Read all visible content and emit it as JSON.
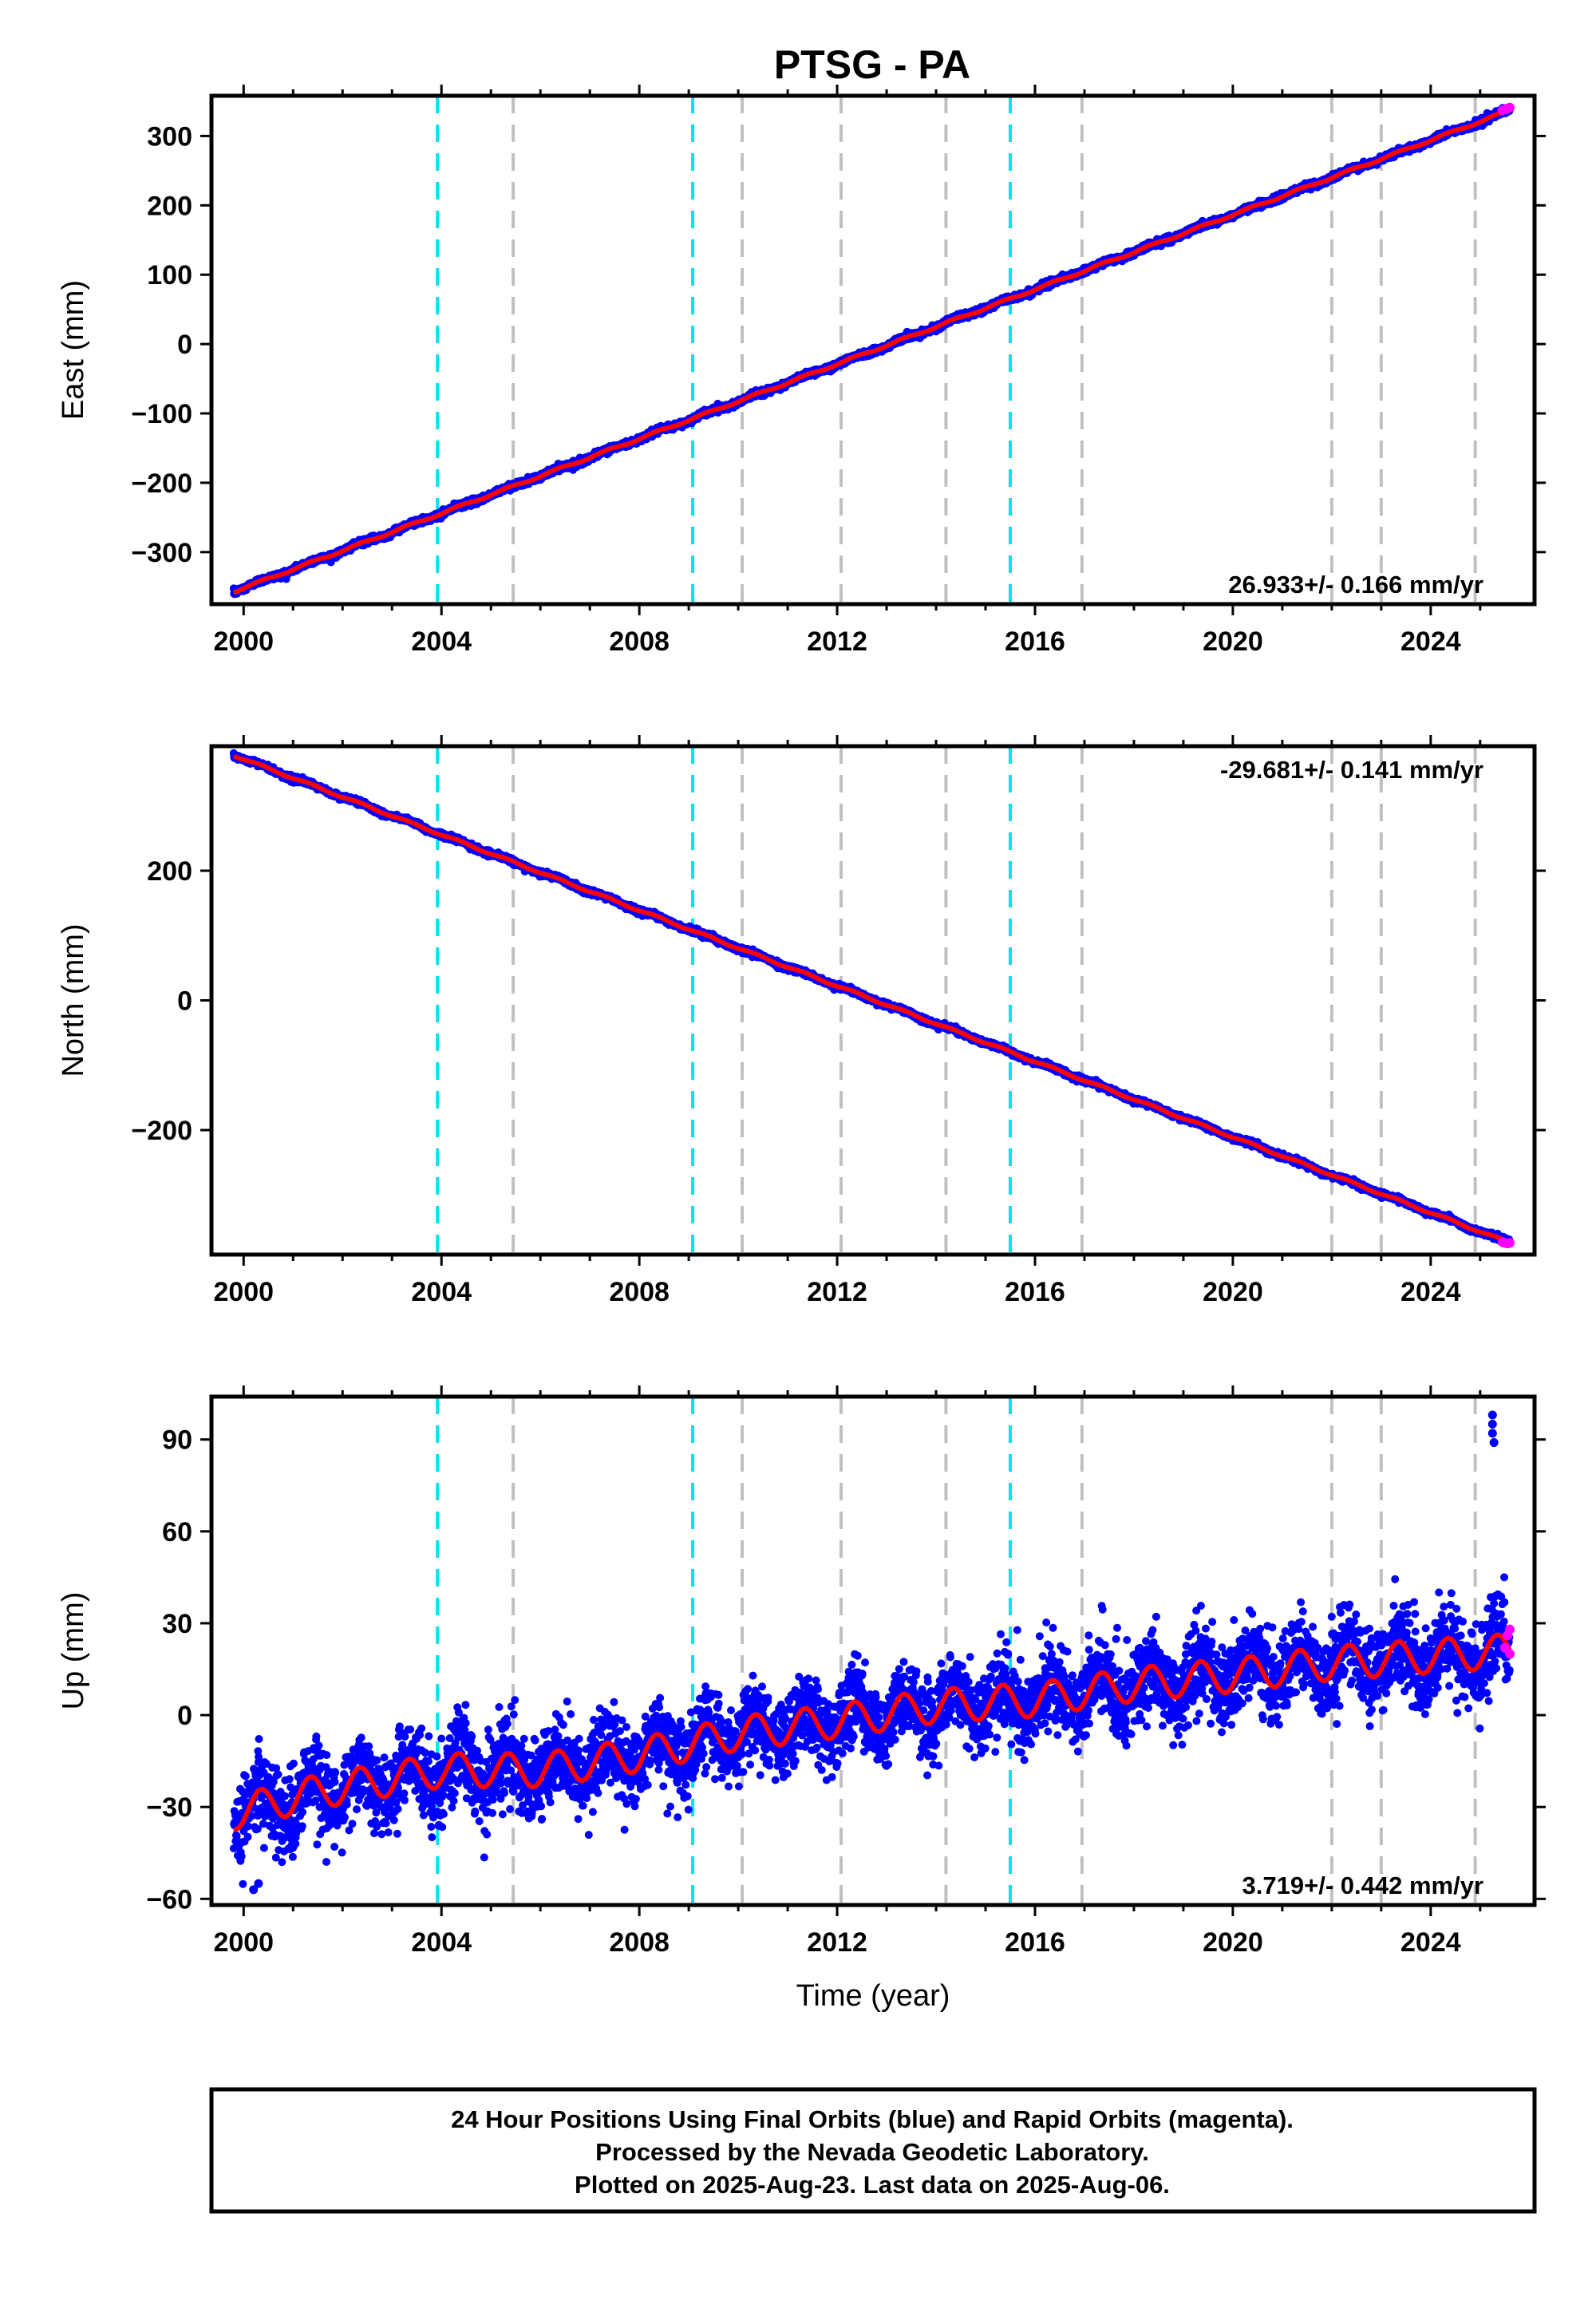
{
  "title": "PTSG - PA",
  "colors": {
    "final": "#0000ff",
    "rapid": "#ff00ff",
    "model": "#ff0000",
    "antenna": "#00e5ee",
    "other": "#c0c0c0"
  },
  "chart_data": [
    {
      "type": "scatter",
      "name": "east",
      "ylabel": "East (mm)",
      "xlabel": "",
      "xlim": [
        1999.35,
        2026.1
      ],
      "ylim": [
        -375,
        358
      ],
      "xticks": [
        2000,
        2004,
        2008,
        2012,
        2016,
        2020,
        2024
      ],
      "xtick_labels": [
        "2000",
        "2004",
        "2008",
        "2012",
        "2016",
        "2020",
        "2024"
      ],
      "yticks": [
        -300,
        -200,
        -100,
        0,
        100,
        200,
        300
      ],
      "ytick_labels": [
        "−300",
        "−200",
        "−100",
        "0",
        "100",
        "200",
        "300"
      ],
      "rate_label": "26.933+/- 0.166 mm/yr",
      "rate_position": "bottom-right",
      "data_start": 1999.8,
      "data_end": 2025.6,
      "start_value": -357,
      "end_value": 337,
      "seasonal_amplitude": 1.5,
      "noise": 2.2,
      "rapid_tail": [
        [
          2025.45,
          337
        ],
        [
          2025.5,
          338
        ],
        [
          2025.55,
          340
        ],
        [
          2025.6,
          341
        ]
      ],
      "outliers": []
    },
    {
      "type": "scatter",
      "name": "north",
      "ylabel": "North (mm)",
      "xlabel": "",
      "xlim": [
        1999.35,
        2026.1
      ],
      "ylim": [
        -392,
        392
      ],
      "xticks": [
        2000,
        2004,
        2008,
        2012,
        2016,
        2020,
        2024
      ],
      "xtick_labels": [
        "2000",
        "2004",
        "2008",
        "2012",
        "2016",
        "2020",
        "2024"
      ],
      "yticks": [
        -200,
        0,
        200
      ],
      "ytick_labels": [
        "−200",
        "0",
        "200"
      ],
      "rate_label": "-29.681+/- 0.141 mm/yr",
      "rate_position": "top-right",
      "data_start": 1999.8,
      "data_end": 2025.6,
      "start_value": 378,
      "end_value": -374,
      "seasonal_amplitude": 1.5,
      "noise": 2.0,
      "rapid_tail": [
        [
          2025.45,
          -373
        ],
        [
          2025.5,
          -374
        ],
        [
          2025.55,
          -375
        ],
        [
          2025.6,
          -374
        ]
      ],
      "outliers": []
    },
    {
      "type": "scatter",
      "name": "up",
      "ylabel": "Up (mm)",
      "xlabel": "Time (year)",
      "xlim": [
        1999.35,
        2026.1
      ],
      "ylim": [
        -62,
        104
      ],
      "xticks": [
        2000,
        2004,
        2008,
        2012,
        2016,
        2020,
        2024
      ],
      "xtick_labels": [
        "2000",
        "2004",
        "2008",
        "2012",
        "2016",
        "2020",
        "2024"
      ],
      "yticks": [
        -60,
        -30,
        0,
        30,
        60,
        90
      ],
      "ytick_labels": [
        "−60",
        "−30",
        "0",
        "30",
        "60",
        "90"
      ],
      "rate_label": "3.719+/- 0.442 mm/yr",
      "rate_position": "bottom-right",
      "data_start": 1999.8,
      "data_end": 2025.6,
      "trend_points": [
        [
          1999.8,
          -32
        ],
        [
          2001.5,
          -25
        ],
        [
          2004.0,
          -18
        ],
        [
          2006.0,
          -18
        ],
        [
          2008.0,
          -13
        ],
        [
          2010.0,
          -6
        ],
        [
          2012.0,
          -2
        ],
        [
          2014.0,
          3
        ],
        [
          2016.0,
          5
        ],
        [
          2018.0,
          10
        ],
        [
          2020.0,
          13
        ],
        [
          2022.0,
          17
        ],
        [
          2025.6,
          21
        ]
      ],
      "seasonal_amplitude": 5.5,
      "noise": 6.5,
      "rapid_tail": [
        [
          2025.5,
          22
        ],
        [
          2025.55,
          26
        ],
        [
          2025.6,
          28
        ],
        [
          2025.6,
          20
        ]
      ],
      "outliers": [
        [
          2025.25,
          98
        ],
        [
          2025.25,
          95
        ],
        [
          2025.25,
          92
        ],
        [
          2025.28,
          89
        ],
        [
          2003.95,
          -36
        ],
        [
          2000.2,
          -57
        ],
        [
          2000.3,
          -55
        ]
      ]
    }
  ],
  "offsets": {
    "antenna_changes": [
      2003.92,
      2009.08,
      2015.5
    ],
    "other_events": [
      2005.45,
      2010.08,
      2012.08,
      2014.2,
      2016.95,
      2022.0,
      2023.0,
      2024.9
    ]
  },
  "footer": {
    "line1": "24 Hour Positions Using Final Orbits (blue) and Rapid Orbits (magenta).",
    "line2": "Processed by the Nevada Geodetic Laboratory.",
    "line3": "Plotted on 2025-Aug-23. Last data on 2025-Aug-06."
  }
}
